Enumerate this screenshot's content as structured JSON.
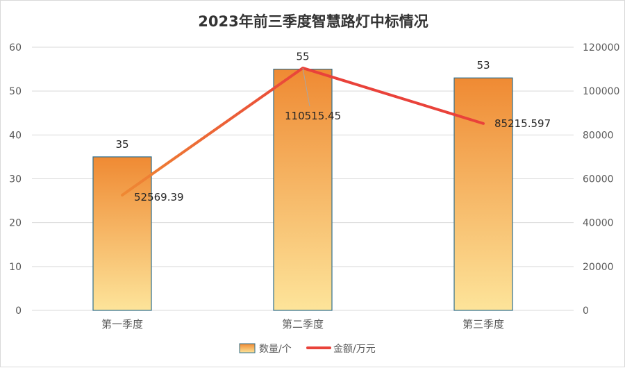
{
  "chart_data": {
    "type": "bar+line",
    "title": "2023年前三季度智慧路灯中标情况",
    "categories": [
      "第一季度",
      "第二季度",
      "第三季度"
    ],
    "y_left": {
      "lim": [
        0,
        60
      ],
      "ticks": [
        "0",
        "10",
        "20",
        "30",
        "40",
        "50",
        "60"
      ]
    },
    "y_right": {
      "lim": [
        0,
        120000
      ],
      "ticks": [
        "0",
        "20000",
        "40000",
        "60000",
        "80000",
        "100000",
        "120000"
      ]
    },
    "series": [
      {
        "name": "数量/个",
        "type": "bar",
        "axis": "left",
        "values": [
          35,
          55,
          53
        ],
        "labels": [
          "35",
          "55",
          "53"
        ]
      },
      {
        "name": "金额/万元",
        "type": "line",
        "axis": "right",
        "values": [
          52569.39,
          110515.45,
          85215.597
        ],
        "labels": [
          "52569.39",
          "110515.45",
          "85215.597"
        ]
      }
    ],
    "grid": true,
    "legend_position": "bottom",
    "colors": {
      "bar_top": "#ef8a33",
      "bar_bottom": "#fde49a",
      "bar_border": "#2e6f8e",
      "line": "#e9423a",
      "line_start": "#ef8a33",
      "grid": "#d9d9d9"
    }
  }
}
